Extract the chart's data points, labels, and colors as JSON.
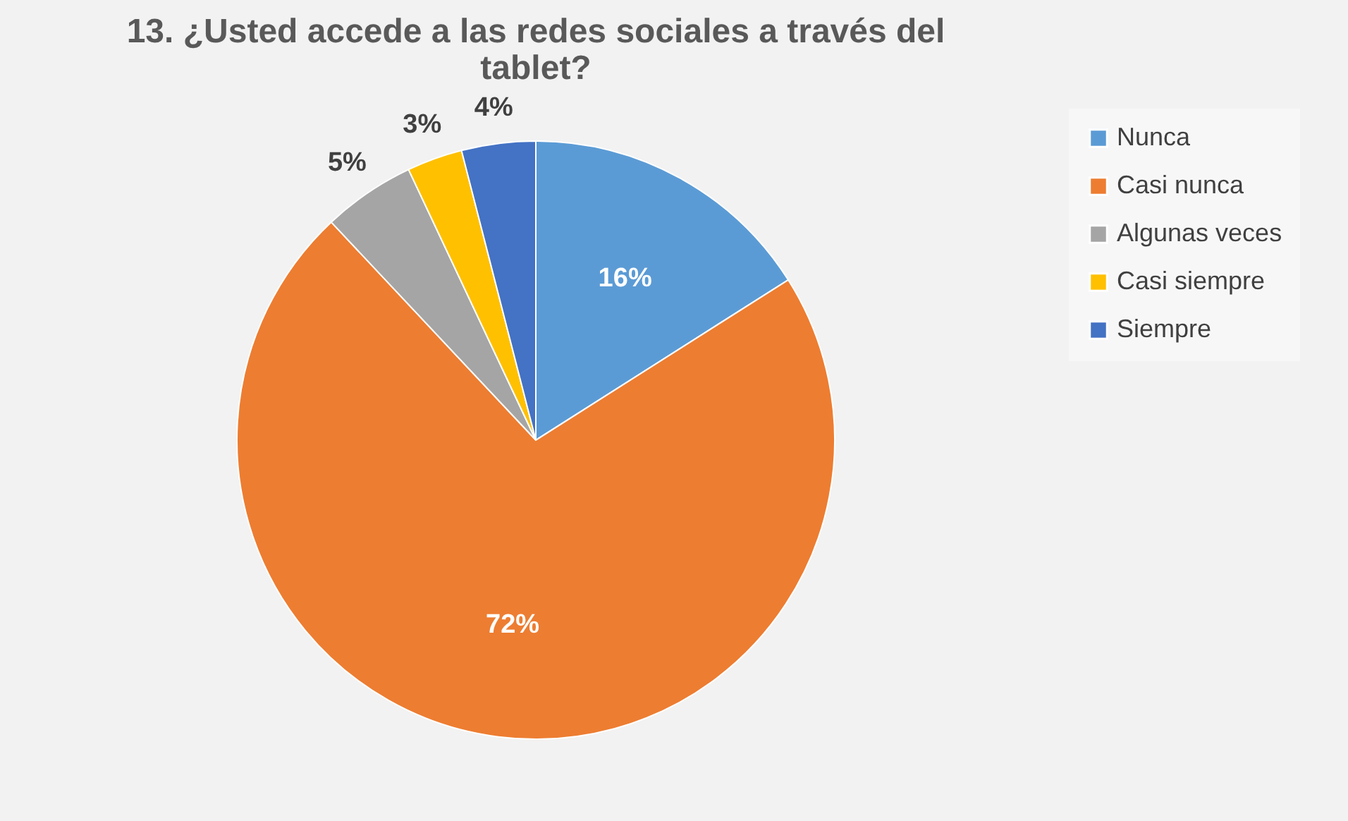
{
  "chart_data": {
    "type": "pie",
    "title": "13. ¿Usted accede a las redes sociales a través del tablet?",
    "categories": [
      "Nunca",
      "Casi nunca",
      "Algunas veces",
      "Casi siempre",
      "Siempre"
    ],
    "values": [
      16,
      72,
      5,
      3,
      4
    ],
    "colors": [
      "#5b9bd5",
      "#ed7d31",
      "#a5a5a5",
      "#ffc000",
      "#4472c4"
    ],
    "value_labels": [
      "16%",
      "72%",
      "5%",
      "3%",
      "4%"
    ],
    "legend": "right"
  }
}
